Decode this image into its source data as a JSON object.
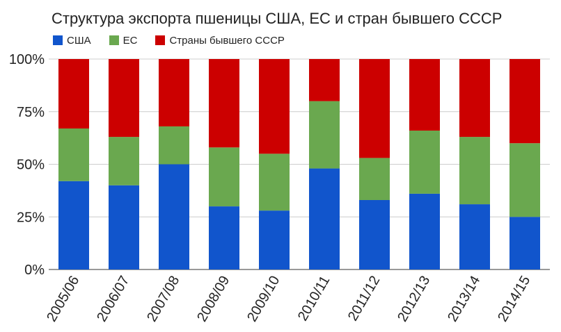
{
  "chart_data": {
    "type": "bar",
    "stacked": true,
    "title": "Структура экспорта пшеницы США, ЕС и стран бывшего СССР",
    "xlabel": "",
    "ylabel": "",
    "ylim": [
      0,
      100
    ],
    "y_ticks": [
      "0%",
      "25%",
      "50%",
      "75%",
      "100%"
    ],
    "legend_position": "top-left",
    "grid": true,
    "categories": [
      "2005/06",
      "2006/07",
      "2007/08",
      "2008/09",
      "2009/10",
      "2010/11",
      "2011/12",
      "2012/13",
      "2013/14",
      "2014/15"
    ],
    "series": [
      {
        "name": "США",
        "color": "#1155cc",
        "values": [
          42,
          40,
          50,
          30,
          28,
          48,
          33,
          36,
          31,
          25
        ]
      },
      {
        "name": "ЕС",
        "color": "#6aa84f",
        "values": [
          25,
          23,
          18,
          28,
          27,
          32,
          20,
          30,
          32,
          35
        ]
      },
      {
        "name": "Страны бывшего СССР",
        "color": "#cc0000",
        "values": [
          33,
          37,
          32,
          42,
          45,
          20,
          47,
          34,
          37,
          40
        ]
      }
    ]
  }
}
